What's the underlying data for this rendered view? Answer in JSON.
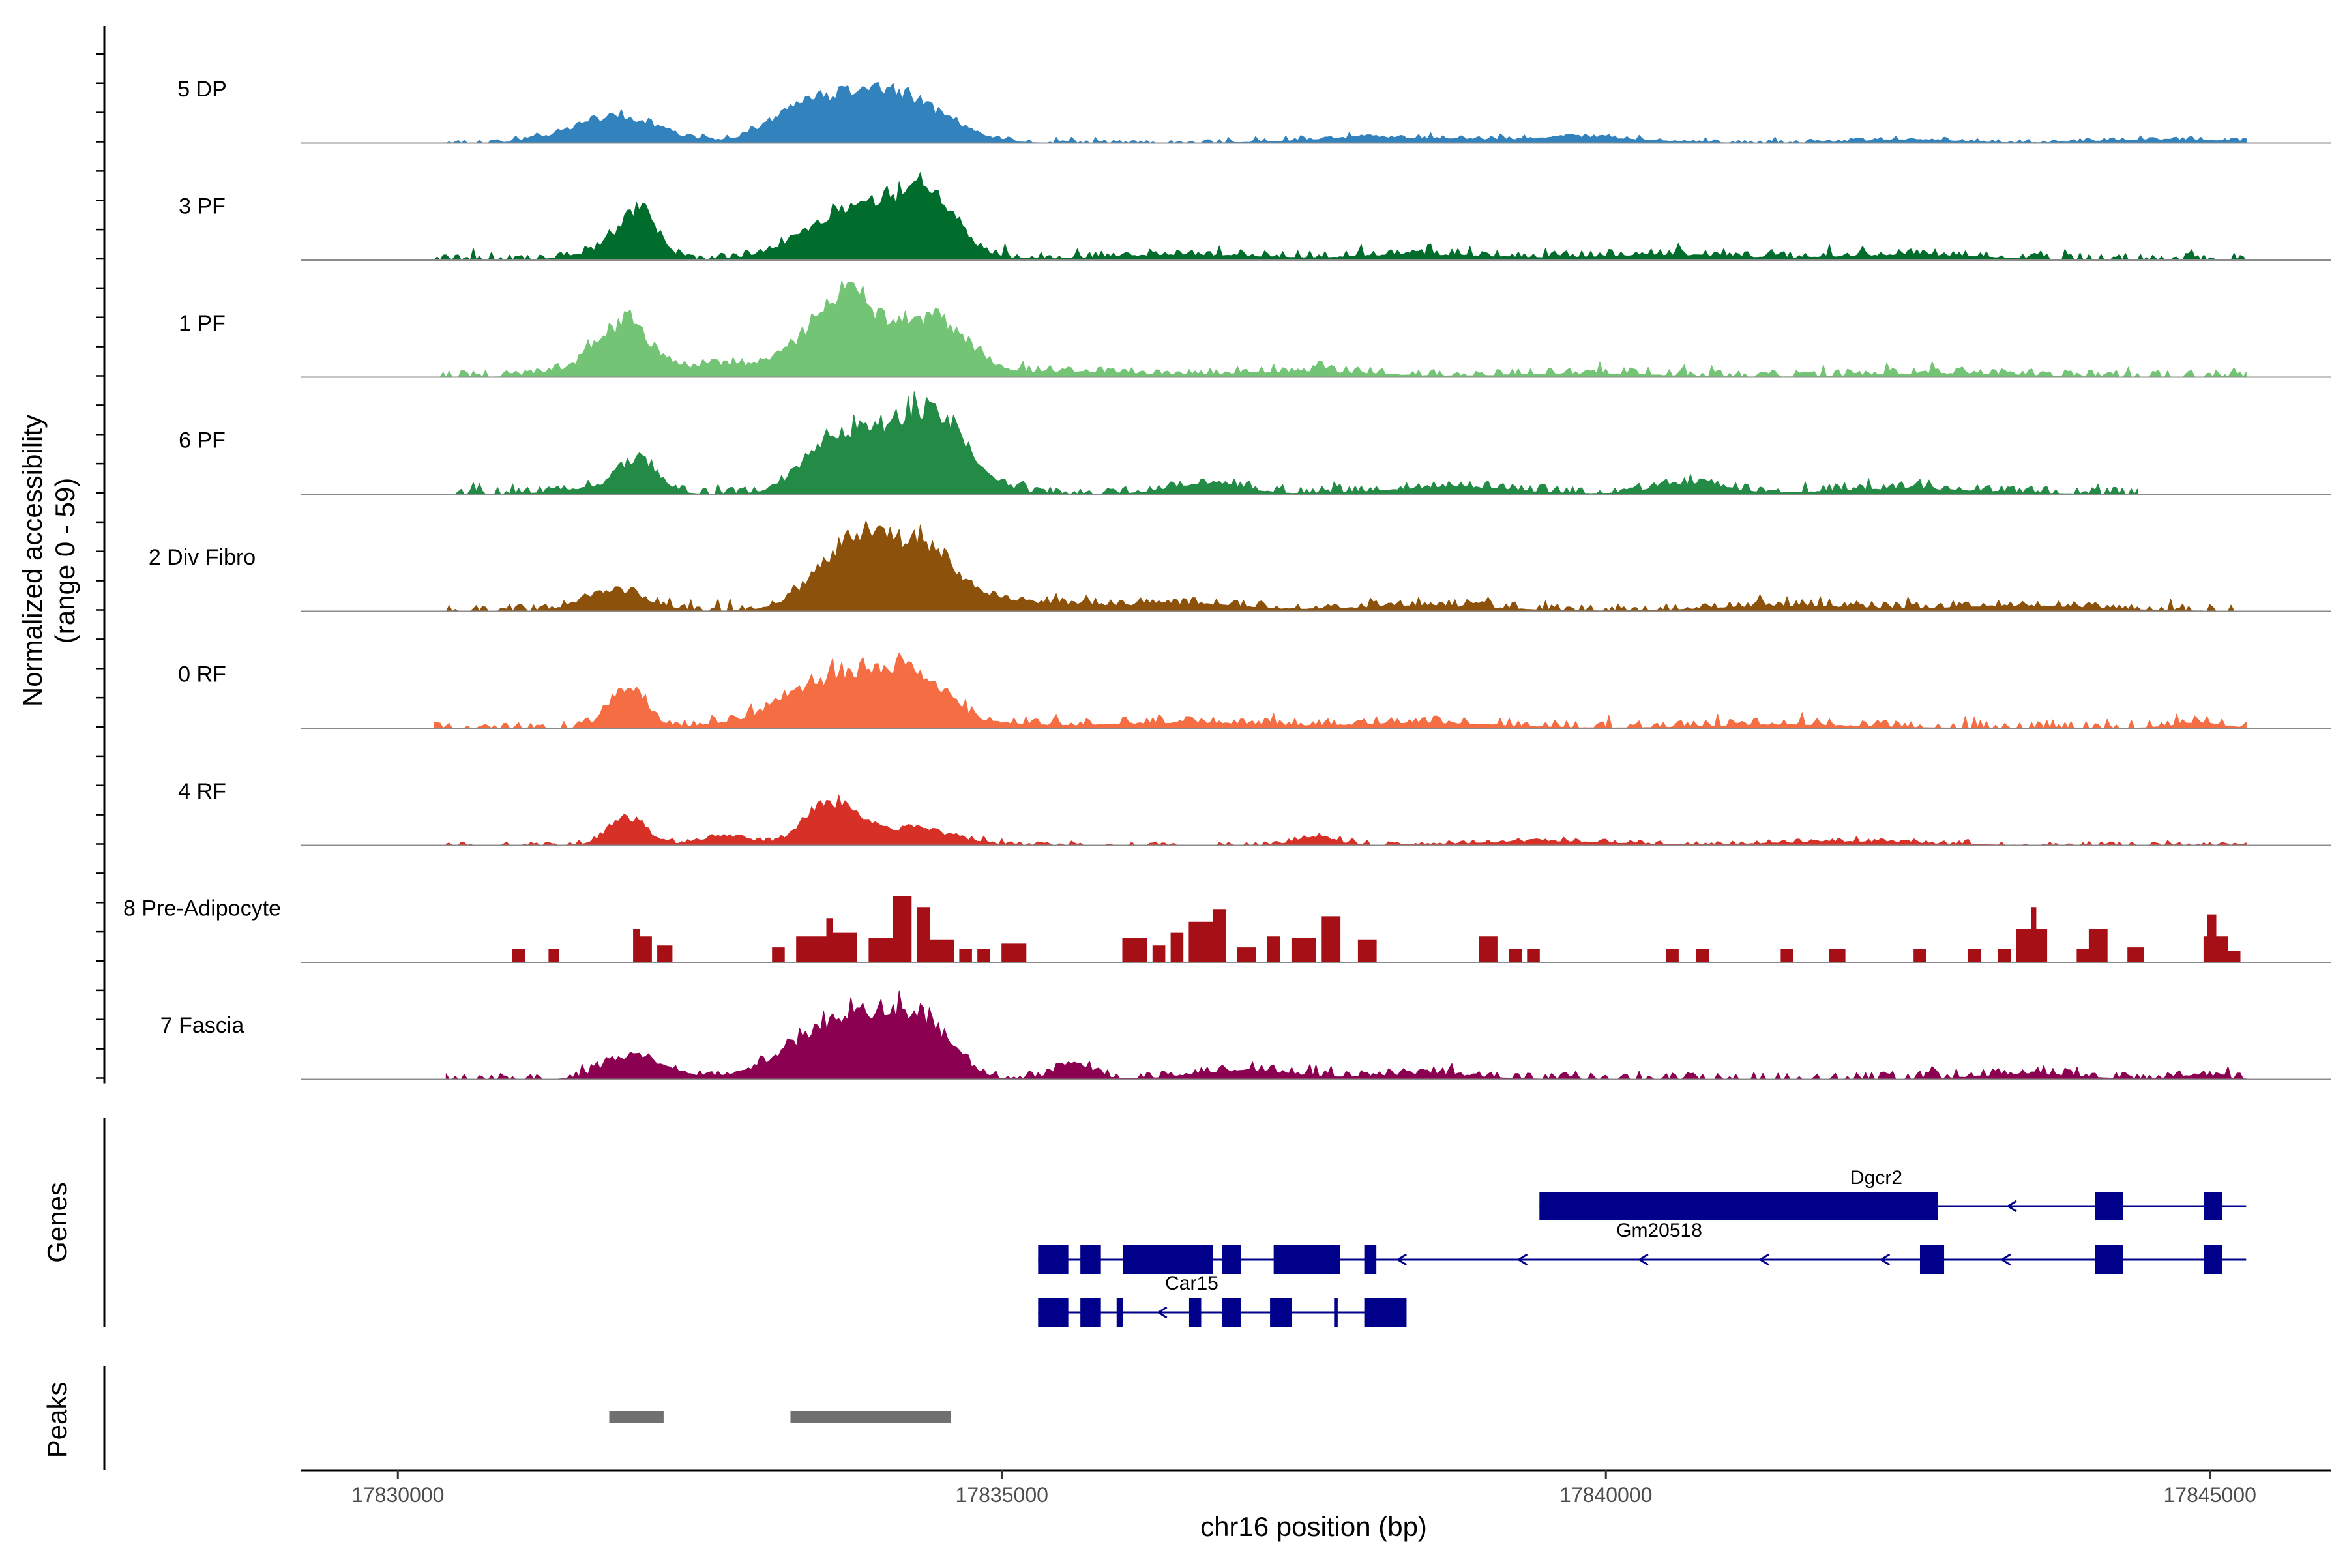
{
  "chart_data": {
    "type": "area",
    "title": "",
    "chromosome": "chr16",
    "xlabel": "chr16 position (bp)",
    "ylabel": "Normalized accessibility",
    "ylabel_range": "(range 0 - 59)",
    "xlim": [
      17829200,
      17846000
    ],
    "ylim": [
      0,
      59
    ],
    "x_ticks": [
      17830000,
      17835000,
      17840000,
      17845000
    ],
    "x_tick_labels": [
      "17830000",
      "17835000",
      "17840000",
      "17845000"
    ],
    "region_start": 17830300,
    "region_end": 17845300,
    "tracks": [
      {
        "name": "5 DP",
        "color": "#3182bd",
        "background": 1,
        "range": [
          17830400,
          17845300
        ],
        "peaks": [
          [
            17831800,
            15,
            350
          ],
          [
            17833600,
            20,
            380
          ],
          [
            17834000,
            13,
            240
          ],
          [
            17834400,
            15,
            300
          ],
          [
            17833300,
            7,
            260
          ],
          [
            17838200,
            3,
            600
          ],
          [
            17839800,
            3,
            500
          ],
          [
            17842500,
            2,
            400
          ],
          [
            17844600,
            2,
            500
          ]
        ]
      },
      {
        "name": "3 PF",
        "color": "#006d2c",
        "background": 2,
        "range": [
          17830300,
          17845300
        ],
        "peaks": [
          [
            17832000,
            26,
            150
          ],
          [
            17831700,
            5,
            250
          ],
          [
            17833600,
            15,
            350
          ],
          [
            17834000,
            13,
            300
          ],
          [
            17834400,
            26,
            220
          ],
          [
            17834100,
            8,
            500
          ],
          [
            17836500,
            3,
            600
          ],
          [
            17838500,
            3,
            600
          ],
          [
            17840500,
            3,
            600
          ],
          [
            17842500,
            3,
            600
          ]
        ]
      },
      {
        "name": "1 PF",
        "color": "#74c476",
        "background": 2,
        "range": [
          17830300,
          17845300
        ],
        "peaks": [
          [
            17831900,
            26,
            200
          ],
          [
            17831600,
            6,
            300
          ],
          [
            17832600,
            6,
            300
          ],
          [
            17833400,
            14,
            300
          ],
          [
            17833700,
            26,
            220
          ],
          [
            17834000,
            19,
            350
          ],
          [
            17834500,
            24,
            250
          ],
          [
            17835500,
            3,
            600
          ],
          [
            17837500,
            3,
            600
          ],
          [
            17839800,
            2,
            600
          ],
          [
            17842800,
            2,
            600
          ]
        ]
      },
      {
        "name": "6 PF",
        "color": "#238b45",
        "background": 2,
        "range": [
          17830400,
          17844400
        ],
        "peaks": [
          [
            17832000,
            18,
            150
          ],
          [
            17831700,
            4,
            300
          ],
          [
            17833600,
            27,
            240
          ],
          [
            17834100,
            23,
            220
          ],
          [
            17834500,
            34,
            240
          ],
          [
            17834200,
            8,
            500
          ],
          [
            17836700,
            6,
            300
          ],
          [
            17838700,
            4,
            500
          ],
          [
            17840700,
            6,
            300
          ],
          [
            17842500,
            3,
            600
          ]
        ]
      },
      {
        "name": "2 Div Fibro",
        "color": "#8c510a",
        "background": 2,
        "range": [
          17830300,
          17845200
        ],
        "peaks": [
          [
            17831800,
            12,
            250
          ],
          [
            17833600,
            16,
            250
          ],
          [
            17833900,
            26,
            250
          ],
          [
            17834400,
            24,
            250
          ],
          [
            17834100,
            8,
            500
          ],
          [
            17835200,
            4,
            500
          ],
          [
            17836500,
            4,
            500
          ],
          [
            17838500,
            3,
            600
          ],
          [
            17841500,
            3,
            600
          ],
          [
            17843500,
            3,
            600
          ]
        ]
      },
      {
        "name": "0 RF",
        "color": "#f46d43",
        "background": 2,
        "range": [
          17830300,
          17845300
        ],
        "peaks": [
          [
            17831900,
            22,
            150
          ],
          [
            17833400,
            12,
            350
          ],
          [
            17833800,
            18,
            300
          ],
          [
            17834300,
            21,
            240
          ],
          [
            17834000,
            6,
            800
          ],
          [
            17836500,
            3,
            600
          ],
          [
            17838500,
            3,
            600
          ],
          [
            17841500,
            2,
            600
          ],
          [
            17844900,
            3,
            200
          ]
        ]
      },
      {
        "name": "4 RF",
        "color": "#d73027",
        "background": 1,
        "range": [
          17830400,
          17845300
        ],
        "peaks": [
          [
            17831900,
            16,
            150
          ],
          [
            17833600,
            24,
            220
          ],
          [
            17834300,
            9,
            300
          ],
          [
            17832700,
            5,
            200
          ],
          [
            17837600,
            5,
            150
          ],
          [
            17839500,
            2,
            600
          ],
          [
            17842000,
            2,
            600
          ]
        ]
      },
      {
        "name": "8 Pre-Adipocyte",
        "color": "#a50f15",
        "background": 0,
        "range": [
          17830900,
          17845300
        ],
        "blocks": [
          [
            17830950,
            17831050,
            7
          ],
          [
            17831250,
            17831330,
            7
          ],
          [
            17831950,
            17832000,
            18
          ],
          [
            17832000,
            17832100,
            14
          ],
          [
            17832150,
            17832270,
            9
          ],
          [
            17833100,
            17833200,
            8
          ],
          [
            17833300,
            17833600,
            14
          ],
          [
            17833550,
            17833600,
            24
          ],
          [
            17833600,
            17833800,
            16
          ],
          [
            17833900,
            17834100,
            13
          ],
          [
            17834100,
            17834250,
            36
          ],
          [
            17834300,
            17834400,
            30
          ],
          [
            17834400,
            17834600,
            12
          ],
          [
            17834650,
            17834750,
            7
          ],
          [
            17834800,
            17834900,
            7
          ],
          [
            17835000,
            17835200,
            10
          ],
          [
            17836000,
            17836200,
            13
          ],
          [
            17836250,
            17836350,
            9
          ],
          [
            17836400,
            17836500,
            16
          ],
          [
            17836550,
            17836850,
            22
          ],
          [
            17836750,
            17836850,
            29
          ],
          [
            17836950,
            17837100,
            8
          ],
          [
            17837200,
            17837300,
            14
          ],
          [
            17837400,
            17837600,
            13
          ],
          [
            17837650,
            17837800,
            25
          ],
          [
            17837950,
            17838100,
            12
          ],
          [
            17838950,
            17839100,
            14
          ],
          [
            17839200,
            17839300,
            7
          ],
          [
            17839350,
            17839450,
            7
          ],
          [
            17840500,
            17840600,
            7
          ],
          [
            17840750,
            17840850,
            7
          ],
          [
            17841450,
            17841550,
            7
          ],
          [
            17841850,
            17841980,
            7
          ],
          [
            17842550,
            17842650,
            7
          ],
          [
            17843000,
            17843100,
            7
          ],
          [
            17843250,
            17843350,
            7
          ],
          [
            17843400,
            17843650,
            18
          ],
          [
            17843520,
            17843560,
            30
          ],
          [
            17843900,
            17844000,
            7
          ],
          [
            17844000,
            17844150,
            18
          ],
          [
            17844320,
            17844450,
            8
          ],
          [
            17844950,
            17845150,
            14
          ],
          [
            17844980,
            17845050,
            26
          ],
          [
            17845150,
            17845250,
            6
          ]
        ]
      },
      {
        "name": "7 Fascia",
        "color": "#8b0050",
        "background": 2,
        "range": [
          17830400,
          17845300
        ],
        "peaks": [
          [
            17831900,
            12,
            200
          ],
          [
            17832200,
            4,
            200
          ],
          [
            17833400,
            16,
            350
          ],
          [
            17833800,
            23,
            300
          ],
          [
            17834100,
            14,
            250
          ],
          [
            17834400,
            24,
            220
          ],
          [
            17835600,
            9,
            150
          ],
          [
            17837000,
            5,
            400
          ],
          [
            17838500,
            3,
            400
          ],
          [
            17843500,
            3,
            400
          ],
          [
            17844900,
            2,
            200
          ]
        ]
      }
    ],
    "genes": [
      {
        "name": "Dgcr2",
        "strand": "-",
        "start": 17839450,
        "end": 17845300,
        "exons": [
          [
            17839450,
            17842750
          ],
          [
            17844050,
            17844280
          ],
          [
            17844950,
            17845100
          ]
        ]
      },
      {
        "name": "Gm20518",
        "strand": "-",
        "start": 17835300,
        "end": 17845300,
        "exons": [
          [
            17835300,
            17835550
          ],
          [
            17835650,
            17835820
          ],
          [
            17836000,
            17836750
          ],
          [
            17836820,
            17836980
          ],
          [
            17837250,
            17837800
          ],
          [
            17838000,
            17838100
          ],
          [
            17842600,
            17842800
          ],
          [
            17844050,
            17844280
          ],
          [
            17844950,
            17845100
          ]
        ]
      },
      {
        "name": "Car15",
        "strand": "-",
        "start": 17835300,
        "end": 17838350,
        "exons": [
          [
            17835300,
            17835550
          ],
          [
            17835650,
            17835820
          ],
          [
            17835950,
            17836000
          ],
          [
            17836550,
            17836650
          ],
          [
            17836820,
            17836980
          ],
          [
            17837220,
            17837400
          ],
          [
            17837750,
            17837780
          ],
          [
            17838000,
            17838350
          ]
        ]
      }
    ],
    "peaks": [
      [
        17831750,
        17832200
      ],
      [
        17833250,
        17834580
      ]
    ],
    "panels": {
      "genes_label": "Genes",
      "peaks_label": "Peaks"
    }
  }
}
